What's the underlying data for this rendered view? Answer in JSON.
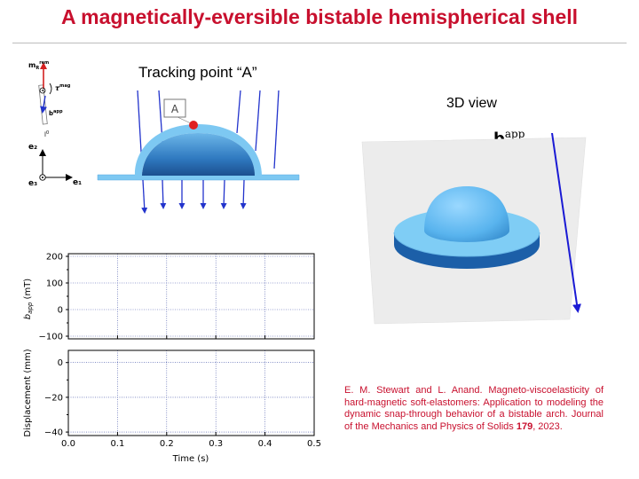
{
  "slide": {
    "title": "A magnetically-eversible bistable hemispherical shell",
    "tracking_label": "Tracking point “A”",
    "point_label": "A",
    "view_label": "3D view",
    "field_label_main": "b",
    "field_label_sup": "app",
    "citation": {
      "authors": "E. M. Stewart and L. Anand. Magneto-viscoelasticity of hard-magnetic soft-elastomers: Application to modeling the dynamic snap-through behavior of a bistable arch. Journal of the Mechanics and Physics of Solids ",
      "volume": "179",
      "year": ", 2023."
    }
  },
  "schematic": {
    "m_label": "m",
    "m_sub": "R",
    "m_sup": "rem",
    "tau_label": "τ",
    "tau_sup": "mag",
    "b_label": "b",
    "b_sup": "app",
    "l_label": "l",
    "l_sup": "0",
    "e1": "e₁",
    "e2": "e₂",
    "e3": "e₃"
  },
  "colors": {
    "title_red": "#c8102e",
    "shell_light": "#7dc8f2",
    "shell_dark": "#2a6db4",
    "arrow_blue": "#2233cc",
    "point_red": "#e02020"
  },
  "chart_data": [
    {
      "type": "line",
      "title": "",
      "xlabel": "",
      "ylabel": "b_app (mT)",
      "ylabel_main": "b",
      "ylabel_sub": "app",
      "ylabel_unit": "(mT)",
      "xlim": [
        0,
        0.5
      ],
      "ylim": [
        -110,
        210
      ],
      "yticks": [
        200,
        100,
        0,
        -100
      ],
      "ytick_labels": [
        "200",
        "100",
        "0",
        "−100"
      ],
      "xticks": [
        0.0,
        0.1,
        0.2,
        0.3,
        0.4,
        0.5
      ],
      "grid": true,
      "series": []
    },
    {
      "type": "line",
      "title": "",
      "xlabel": "Time (s)",
      "ylabel": "Displacement (mm)",
      "xlim": [
        0,
        0.5
      ],
      "ylim": [
        -42,
        7
      ],
      "yticks": [
        0,
        -20,
        -40
      ],
      "ytick_labels": [
        "0",
        "−20",
        "−40"
      ],
      "xticks": [
        0.0,
        0.1,
        0.2,
        0.3,
        0.4,
        0.5
      ],
      "xtick_labels": [
        "0.0",
        "0.1",
        "0.2",
        "0.3",
        "0.4",
        "0.5"
      ],
      "grid": true,
      "series": []
    }
  ]
}
